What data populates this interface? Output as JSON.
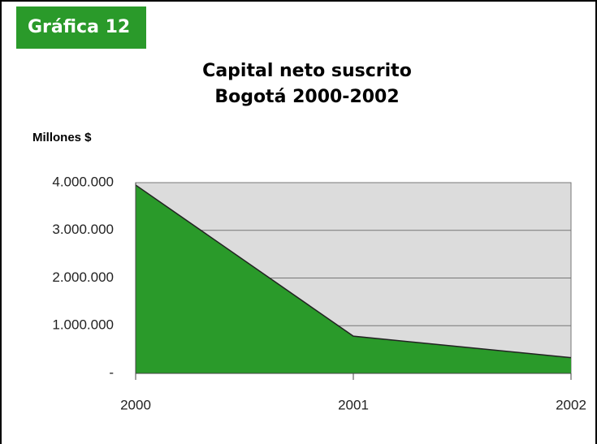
{
  "header": {
    "label": "Gráfica 12"
  },
  "chart_data": {
    "type": "area",
    "title": "Capital neto suscrito",
    "subtitle": "Bogotá 2000-2002",
    "y_label": "Millones $",
    "categories": [
      "2000",
      "2001",
      "2002"
    ],
    "values": [
      3950000,
      780000,
      330000
    ],
    "color": "#2a9a2a",
    "plot_background": "#dcdcdc",
    "ylim": [
      0,
      4000000
    ],
    "yticks": [
      {
        "value": 0,
        "label": "-"
      },
      {
        "value": 1000000,
        "label": "1.000.000"
      },
      {
        "value": 2000000,
        "label": "2.000.000"
      },
      {
        "value": 3000000,
        "label": "3.000.000"
      },
      {
        "value": 4000000,
        "label": "4.000.000"
      }
    ],
    "grid": true
  }
}
